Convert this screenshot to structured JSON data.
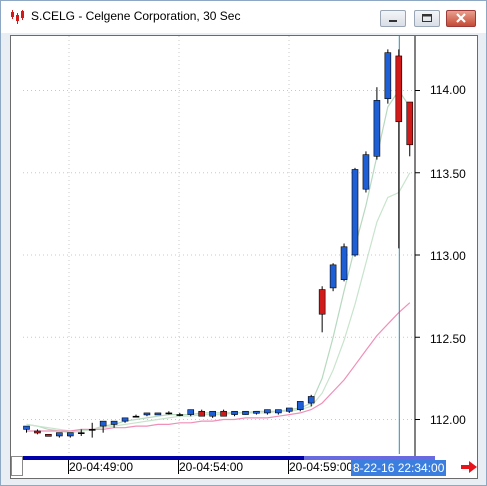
{
  "window": {
    "title": "S.CELG - Celgene Corporation, 30 Sec",
    "icon": "candlestick-app-icon",
    "buttons": [
      "minimize-icon",
      "maximize-icon",
      "close-icon"
    ]
  },
  "colors": {
    "up_candle": "#1f5fd6",
    "down_candle": "#d11a1a",
    "doji": "#000000",
    "ma_fast": "#b7d9bf",
    "ma_mid": "#c8e4cc",
    "ma_slow": "#f08fb8",
    "cursor_line": "#2a8fa8",
    "grid": "#c8c8c8"
  },
  "chart_data": {
    "type": "candlestick",
    "symbol": "S.CELG",
    "y_ticks": [
      "114.00",
      "113.50",
      "113.00",
      "112.50",
      "112.00"
    ],
    "y_tick_values": [
      114.0,
      113.5,
      113.0,
      112.5,
      112.0
    ],
    "ylim": [
      111.55,
      114.25
    ],
    "x_labels": [
      "20-04:49:00",
      "20-04:54:00",
      "20-04:59:00"
    ],
    "cursor_time": "8-22-16 22:34:00",
    "grid": "dotted",
    "candles": [
      {
        "o": 111.94,
        "h": 111.96,
        "l": 111.92,
        "c": 111.96
      },
      {
        "o": 111.93,
        "h": 111.94,
        "l": 111.91,
        "c": 111.92
      },
      {
        "o": 111.91,
        "h": 111.91,
        "l": 111.9,
        "c": 111.9
      },
      {
        "o": 111.9,
        "h": 111.92,
        "l": 111.89,
        "c": 111.92
      },
      {
        "o": 111.9,
        "h": 111.92,
        "l": 111.89,
        "c": 111.92
      },
      {
        "o": 111.92,
        "h": 111.94,
        "l": 111.9,
        "c": 111.92
      },
      {
        "o": 111.94,
        "h": 111.98,
        "l": 111.89,
        "c": 111.94
      },
      {
        "o": 111.96,
        "h": 111.99,
        "l": 111.92,
        "c": 111.99
      },
      {
        "o": 111.97,
        "h": 111.99,
        "l": 111.95,
        "c": 111.99
      },
      {
        "o": 111.99,
        "h": 112.01,
        "l": 111.98,
        "c": 112.01
      },
      {
        "o": 112.02,
        "h": 112.03,
        "l": 112.02,
        "c": 112.02
      },
      {
        "o": 112.03,
        "h": 112.04,
        "l": 112.02,
        "c": 112.04
      },
      {
        "o": 112.03,
        "h": 112.04,
        "l": 112.03,
        "c": 112.04
      },
      {
        "o": 112.04,
        "h": 112.05,
        "l": 112.03,
        "c": 112.04
      },
      {
        "o": 112.03,
        "h": 112.04,
        "l": 112.02,
        "c": 112.03
      },
      {
        "o": 112.03,
        "h": 112.06,
        "l": 112.02,
        "c": 112.06
      },
      {
        "o": 112.05,
        "h": 112.06,
        "l": 112.02,
        "c": 112.02
      },
      {
        "o": 112.02,
        "h": 112.05,
        "l": 112.01,
        "c": 112.05
      },
      {
        "o": 112.05,
        "h": 112.06,
        "l": 112.02,
        "c": 112.02
      },
      {
        "o": 112.03,
        "h": 112.05,
        "l": 112.02,
        "c": 112.05
      },
      {
        "o": 112.03,
        "h": 112.05,
        "l": 112.03,
        "c": 112.05
      },
      {
        "o": 112.04,
        "h": 112.05,
        "l": 112.03,
        "c": 112.05
      },
      {
        "o": 112.04,
        "h": 112.06,
        "l": 112.03,
        "c": 112.06
      },
      {
        "o": 112.04,
        "h": 112.06,
        "l": 112.03,
        "c": 112.06
      },
      {
        "o": 112.05,
        "h": 112.07,
        "l": 112.04,
        "c": 112.07
      },
      {
        "o": 112.06,
        "h": 112.11,
        "l": 112.05,
        "c": 112.11
      },
      {
        "o": 112.1,
        "h": 112.15,
        "l": 112.08,
        "c": 112.14
      },
      {
        "o": 112.79,
        "h": 112.81,
        "l": 112.53,
        "c": 112.64
      },
      {
        "o": 112.8,
        "h": 112.95,
        "l": 112.78,
        "c": 112.94
      },
      {
        "o": 112.85,
        "h": 113.07,
        "l": 112.84,
        "c": 113.05
      },
      {
        "o": 113.0,
        "h": 113.53,
        "l": 112.99,
        "c": 113.52
      },
      {
        "o": 113.4,
        "h": 113.63,
        "l": 113.38,
        "c": 113.61
      },
      {
        "o": 113.6,
        "h": 114.02,
        "l": 113.58,
        "c": 113.94
      },
      {
        "o": 113.95,
        "h": 114.25,
        "l": 113.92,
        "c": 114.23
      },
      {
        "o": 114.21,
        "h": 114.25,
        "l": 113.04,
        "c": 113.81
      },
      {
        "o": 113.93,
        "h": 113.93,
        "l": 113.6,
        "c": 113.67
      }
    ],
    "series": [
      {
        "role": "ma-fast",
        "values": [
          111.97,
          111.96,
          111.94,
          111.93,
          111.92,
          111.93,
          111.94,
          111.96,
          111.97,
          111.99,
          112.0,
          112.01,
          112.02,
          112.03,
          112.03,
          112.03,
          112.04,
          112.04,
          112.04,
          112.04,
          112.04,
          112.05,
          112.05,
          112.05,
          112.06,
          112.07,
          112.1,
          112.25,
          112.5,
          112.78,
          113.05,
          113.3,
          113.6,
          113.9,
          114.0,
          113.9
        ]
      },
      {
        "role": "ma-mid",
        "values": [
          111.97,
          111.96,
          111.95,
          111.94,
          111.93,
          111.93,
          111.94,
          111.95,
          111.96,
          111.97,
          111.98,
          111.99,
          112.0,
          112.01,
          112.02,
          112.02,
          112.03,
          112.03,
          112.03,
          112.04,
          112.04,
          112.04,
          112.04,
          112.05,
          112.05,
          112.06,
          112.08,
          112.16,
          112.3,
          112.48,
          112.7,
          112.95,
          113.2,
          113.35,
          113.38,
          113.5
        ]
      },
      {
        "role": "ma-slow",
        "values": [
          111.93,
          111.93,
          111.93,
          111.93,
          111.93,
          111.94,
          111.94,
          111.94,
          111.95,
          111.95,
          111.96,
          111.96,
          111.97,
          111.97,
          111.98,
          111.98,
          111.99,
          111.99,
          112.0,
          112.0,
          112.01,
          112.01,
          112.01,
          112.02,
          112.03,
          112.04,
          112.06,
          112.1,
          112.17,
          112.24,
          112.33,
          112.42,
          112.51,
          112.58,
          112.65,
          112.71
        ]
      }
    ]
  }
}
